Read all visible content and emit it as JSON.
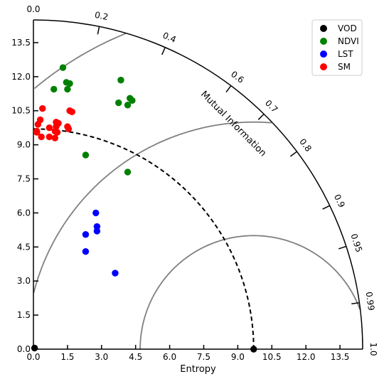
{
  "chart_data": {
    "type": "scatter",
    "subtype": "taylor-diagram",
    "xlabel": "Entropy",
    "arc_label": "Mutual Information",
    "radial_max": 14.5,
    "x_ticks": [
      0.0,
      1.5,
      3.0,
      4.5,
      6.0,
      7.5,
      9.0,
      10.5,
      12.0,
      13.5
    ],
    "x_tick_labels": [
      "0.0",
      "1.5",
      "3.0",
      "4.5",
      "6.0",
      "7.5",
      "9.0",
      "10.5",
      "12.0",
      "13.5"
    ],
    "y_ticks": [
      0.0,
      1.5,
      3.0,
      4.5,
      6.0,
      7.5,
      9.0,
      10.5,
      12.0,
      13.5
    ],
    "y_tick_labels": [
      "0.0",
      "1.5",
      "3.0",
      "4.5",
      "6.0",
      "7.5",
      "9.0",
      "10.5",
      "12.0",
      "13.5"
    ],
    "mi_ticks": [
      0.0,
      0.2,
      0.4,
      0.6,
      0.7,
      0.8,
      0.9,
      0.95,
      0.99,
      1.0
    ],
    "mi_tick_labels": [
      "0.0",
      "0.2",
      "0.4",
      "0.6",
      "0.7",
      "0.8",
      "0.9",
      "0.95",
      "0.99",
      "1.0"
    ],
    "reference_radius": 9.7,
    "rms_contours": [
      5.0,
      10.0,
      15.0
    ],
    "legend": {
      "placement": "top-right",
      "entries": [
        {
          "label": "VOD",
          "color": "#000000"
        },
        {
          "label": "NDVI",
          "color": "#008000"
        },
        {
          "label": "LST",
          "color": "#0000ff"
        },
        {
          "label": "SM",
          "color": "#ff0000"
        }
      ]
    },
    "series": [
      {
        "name": "VOD",
        "color": "#000000",
        "points": [
          [
            9.7,
            0.0
          ],
          [
            0.05,
            0.05
          ]
        ]
      },
      {
        "name": "NDVI",
        "color": "#008000",
        "points": [
          [
            1.3,
            12.4
          ],
          [
            0.9,
            11.45
          ],
          [
            1.45,
            11.75
          ],
          [
            1.6,
            11.7
          ],
          [
            1.5,
            11.45
          ],
          [
            3.85,
            11.85
          ],
          [
            3.75,
            10.85
          ],
          [
            4.15,
            10.75
          ],
          [
            4.25,
            11.05
          ],
          [
            4.35,
            10.95
          ],
          [
            2.3,
            8.55
          ],
          [
            4.15,
            7.8
          ]
        ]
      },
      {
        "name": "LST",
        "color": "#0000ff",
        "points": [
          [
            2.75,
            6.0
          ],
          [
            2.8,
            5.4
          ],
          [
            2.8,
            5.2
          ],
          [
            2.3,
            5.05
          ],
          [
            2.3,
            4.3
          ],
          [
            3.6,
            3.35
          ]
        ]
      },
      {
        "name": "SM",
        "color": "#ff0000",
        "points": [
          [
            0.4,
            10.6
          ],
          [
            0.3,
            10.1
          ],
          [
            0.2,
            9.9
          ],
          [
            0.15,
            9.6
          ],
          [
            0.35,
            9.35
          ],
          [
            0.7,
            9.35
          ],
          [
            0.95,
            9.3
          ],
          [
            0.7,
            9.75
          ],
          [
            0.95,
            9.6
          ],
          [
            1.05,
            9.55
          ],
          [
            1.0,
            10.0
          ],
          [
            1.1,
            9.95
          ],
          [
            1.0,
            9.8
          ],
          [
            1.5,
            9.8
          ],
          [
            1.55,
            9.7
          ],
          [
            1.6,
            10.5
          ],
          [
            1.7,
            10.45
          ],
          [
            0.15,
            9.55
          ],
          [
            1.05,
            9.9
          ]
        ]
      }
    ]
  }
}
